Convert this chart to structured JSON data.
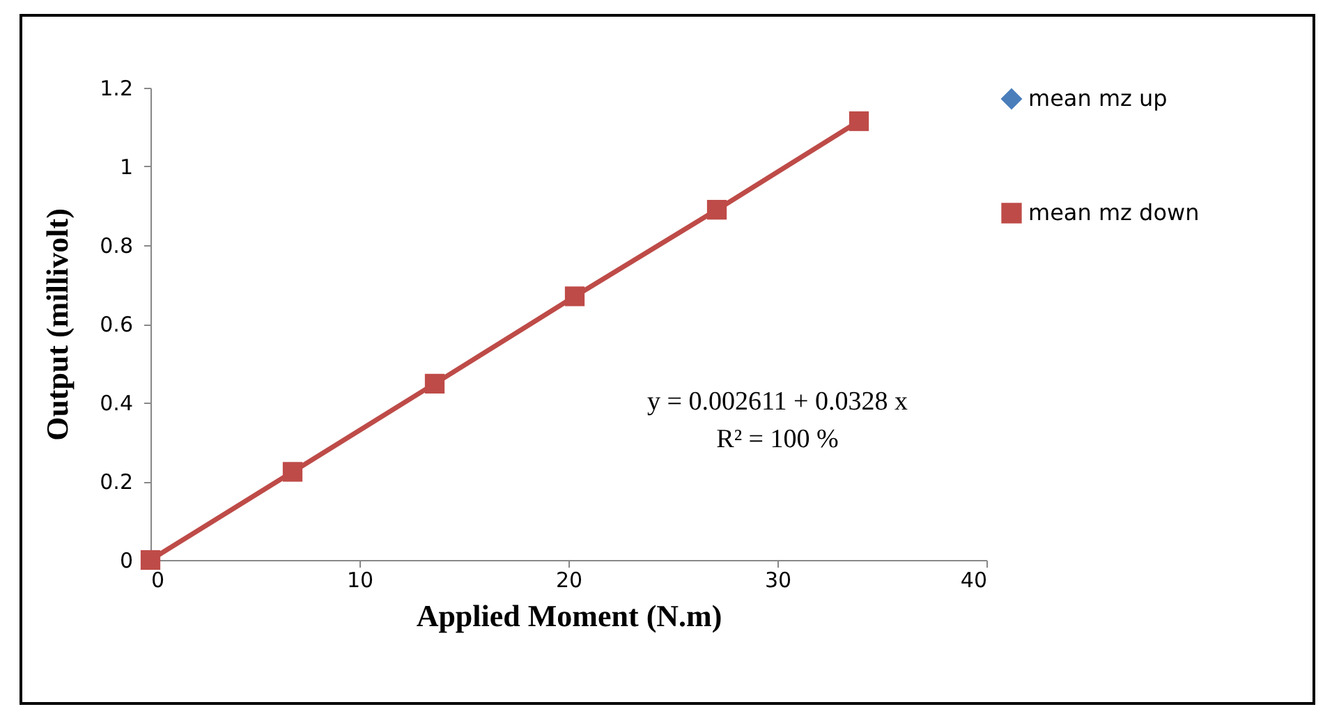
{
  "chart_data": {
    "type": "line",
    "xlabel": "Applied Moment (N.m)",
    "ylabel": "Output (millivolt)",
    "x": [
      0,
      6.8,
      13.6,
      20.3,
      27.1,
      33.9
    ],
    "series": [
      {
        "name": "mean mz up",
        "color": "#4a7ebb",
        "marker": "diamond",
        "values": [
          null,
          null,
          null,
          null,
          null,
          null
        ]
      },
      {
        "name": "mean mz down",
        "color": "#be4b48",
        "marker": "square",
        "values": [
          0,
          0.224,
          0.448,
          0.67,
          0.89,
          1.115
        ]
      }
    ],
    "xlim": [
      0,
      40
    ],
    "xticks": [
      0,
      10,
      20,
      30,
      40
    ],
    "ylim": [
      0,
      1.2
    ],
    "yticks": [
      0,
      0.2,
      0.4,
      0.6,
      0.8,
      1,
      1.2
    ],
    "grid": false,
    "legend": "right",
    "annotations": [
      "y = 0.002611 + 0.0328 x",
      "R² = 100 %"
    ]
  }
}
